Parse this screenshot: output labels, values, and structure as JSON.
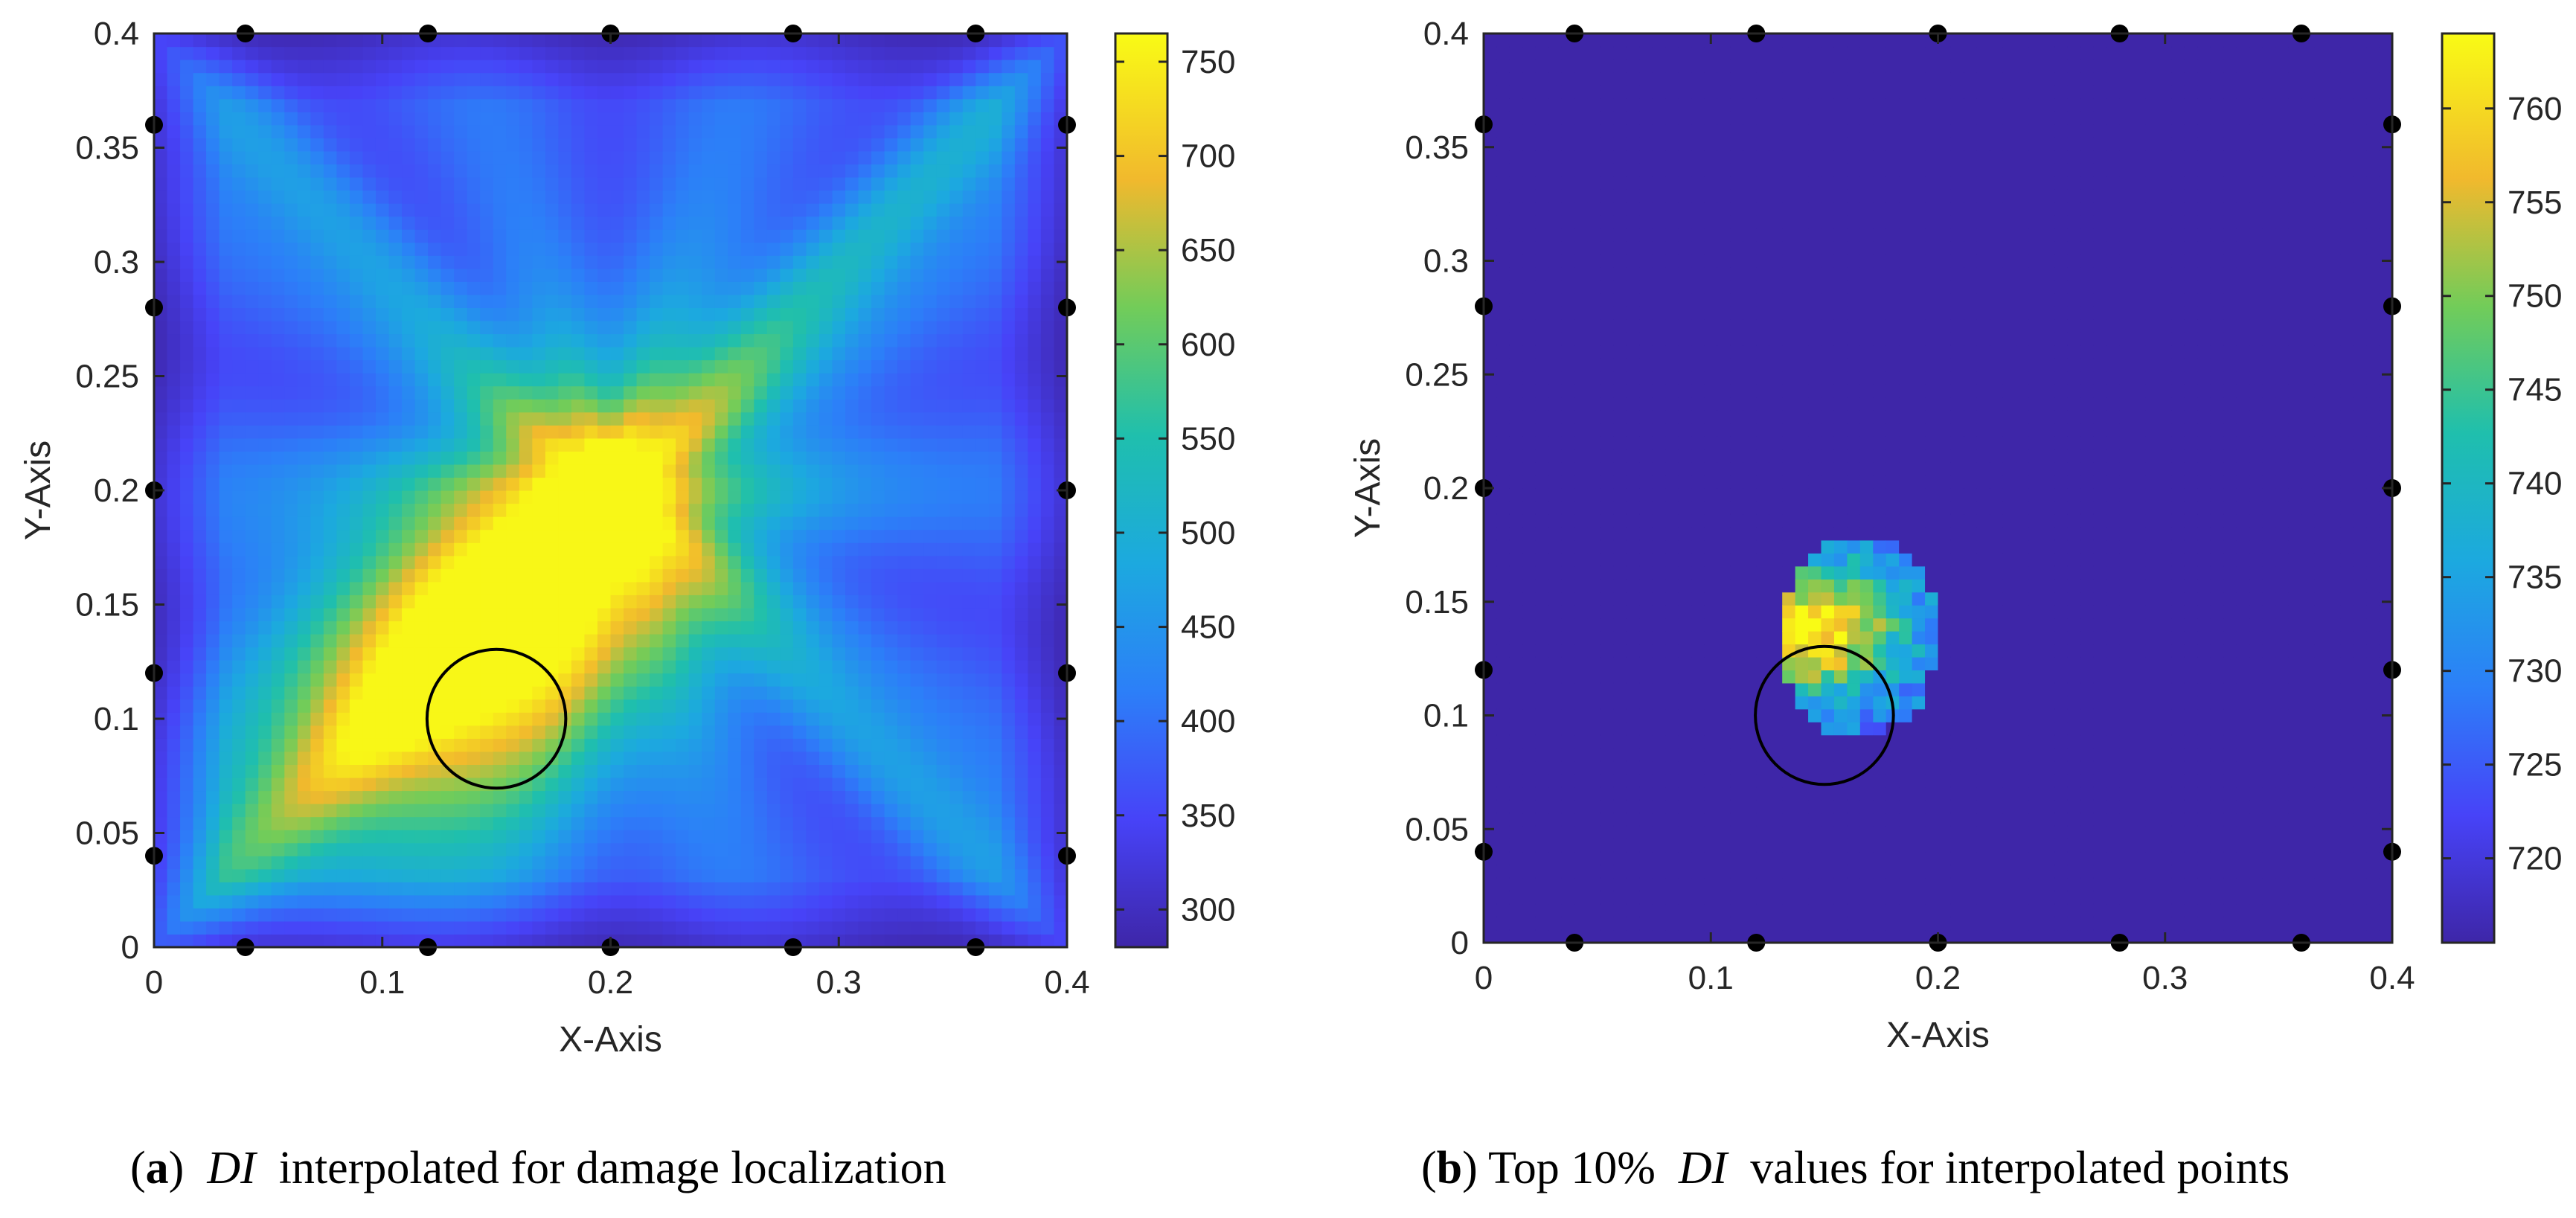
{
  "chart_data": [
    {
      "type": "heatmap",
      "id": "a",
      "xlabel": "X-Axis",
      "ylabel": "Y-Axis",
      "xlim": [
        0,
        0.4
      ],
      "ylim": [
        0,
        0.4
      ],
      "xticks": [
        0,
        0.1,
        0.2,
        0.3,
        0.4
      ],
      "xtick_labels": [
        "0",
        "0.1",
        "0.2",
        "0.3",
        "0.4"
      ],
      "yticks": [
        0,
        0.05,
        0.1,
        0.15,
        0.2,
        0.25,
        0.3,
        0.35,
        0.4
      ],
      "ytick_labels": [
        "0",
        "0.05",
        "0.1",
        "0.15",
        "0.2",
        "0.25",
        "0.3",
        "0.35",
        "0.4"
      ],
      "colorbar": {
        "min": 280,
        "max": 765,
        "ticks": [
          300,
          350,
          400,
          450,
          500,
          550,
          600,
          650,
          700,
          750
        ],
        "tick_labels": [
          "300",
          "350",
          "400",
          "450",
          "500",
          "550",
          "600",
          "650",
          "700",
          "750"
        ]
      },
      "field": {
        "base": 300,
        "peak": {
          "x": 0.155,
          "y": 0.145,
          "value": 760
        },
        "ridge": {
          "from": [
            0.1,
            0.08
          ],
          "to": [
            0.22,
            0.2
          ]
        }
      },
      "sensors_top_bottom_x": [
        0.04,
        0.12,
        0.2,
        0.28,
        0.36
      ],
      "sensors_left_right_y": [
        0.04,
        0.12,
        0.2,
        0.28,
        0.36
      ],
      "damage": {
        "x": 0.15,
        "y": 0.1,
        "r": 0.02
      }
    },
    {
      "type": "heatmap",
      "id": "b",
      "xlabel": "X-Axis",
      "ylabel": "Y-Axis",
      "xlim": [
        0,
        0.4
      ],
      "ylim": [
        0,
        0.4
      ],
      "xticks": [
        0,
        0.1,
        0.2,
        0.3,
        0.4
      ],
      "xtick_labels": [
        "0",
        "0.1",
        "0.2",
        "0.3",
        "0.4"
      ],
      "yticks": [
        0,
        0.05,
        0.1,
        0.15,
        0.2,
        0.25,
        0.3,
        0.35,
        0.4
      ],
      "ytick_labels": [
        "0",
        "0.05",
        "0.1",
        "0.15",
        "0.2",
        "0.25",
        "0.3",
        "0.35",
        "0.4"
      ],
      "colorbar": {
        "min": 715.5,
        "max": 764,
        "ticks": [
          720,
          725,
          730,
          735,
          740,
          745,
          750,
          755,
          760
        ],
        "tick_labels": [
          "720",
          "725",
          "730",
          "735",
          "740",
          "745",
          "750",
          "755",
          "760"
        ]
      },
      "threshold_top_percent": 10,
      "background_value": 715.5,
      "hot_region": {
        "x_range": [
          0.13,
          0.2
        ],
        "y_range": [
          0.09,
          0.18
        ],
        "peak": {
          "x": 0.148,
          "y": 0.138,
          "value": 763
        }
      },
      "sensors_top_bottom_x": [
        0.04,
        0.12,
        0.2,
        0.28,
        0.36
      ],
      "sensors_left_right_y": [
        0.04,
        0.12,
        0.2,
        0.28,
        0.36
      ],
      "damage": {
        "x": 0.15,
        "y": 0.1,
        "r": 0.02
      }
    }
  ],
  "captions": {
    "a": {
      "label": "a",
      "di": "DI",
      "text": "interpolated for damage localization"
    },
    "b": {
      "label": "b",
      "pre": "Top 10%",
      "di": "DI",
      "text": "values for interpolated points"
    }
  }
}
